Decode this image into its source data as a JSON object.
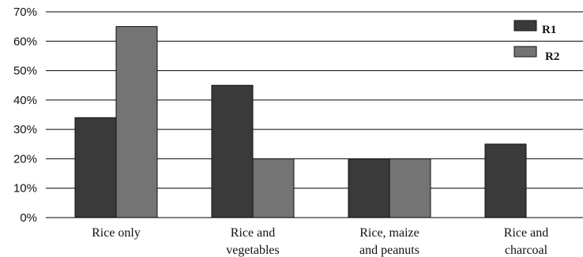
{
  "chart_data": {
    "type": "bar",
    "categories": [
      [
        "Rice only"
      ],
      [
        "Rice and",
        "vegetables"
      ],
      [
        "Rice, maize",
        "and peanuts"
      ],
      [
        "Rice and",
        "charcoal"
      ]
    ],
    "series": [
      {
        "name": "R1",
        "values": [
          34,
          45,
          20,
          25
        ],
        "color": "#3a3a3a"
      },
      {
        "name": "R2",
        "values": [
          65,
          20,
          20,
          0
        ],
        "color": "#747474"
      }
    ],
    "y_ticks": [
      "0%",
      "10%",
      "20%",
      "30%",
      "40%",
      "50%",
      "60%",
      "70%"
    ],
    "ylim": [
      0,
      70
    ],
    "grid": true,
    "legend_position": "top-right",
    "title": "",
    "xlabel": "",
    "ylabel": ""
  }
}
